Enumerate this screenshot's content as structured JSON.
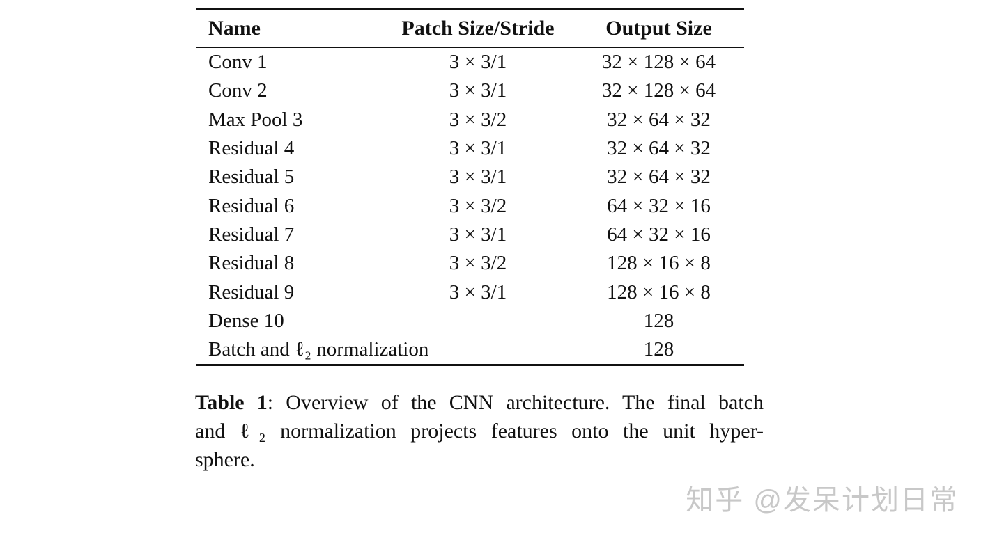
{
  "table": {
    "headers": [
      "Name",
      "Patch Size/Stride",
      "Output Size"
    ],
    "rows": [
      {
        "name": "Conv 1",
        "patch": "3 × 3/1",
        "output": "32 × 128 × 64"
      },
      {
        "name": "Conv 2",
        "patch": "3 × 3/1",
        "output": "32 × 128 × 64"
      },
      {
        "name": "Max Pool 3",
        "patch": "3 × 3/2",
        "output": "32 × 64 × 32"
      },
      {
        "name": "Residual 4",
        "patch": "3 × 3/1",
        "output": "32 × 64 × 32"
      },
      {
        "name": "Residual 5",
        "patch": "3 × 3/1",
        "output": "32 × 64 × 32"
      },
      {
        "name": "Residual 6",
        "patch": "3 × 3/2",
        "output": "64 × 32 × 16"
      },
      {
        "name": "Residual 7",
        "patch": "3 × 3/1",
        "output": "64 × 32 × 16"
      },
      {
        "name": "Residual 8",
        "patch": "3 × 3/2",
        "output": "128 × 16 × 8"
      },
      {
        "name": "Residual 9",
        "patch": "3 × 3/1",
        "output": "128 × 16 × 8"
      },
      {
        "name": "Dense 10",
        "patch": "",
        "output": "128"
      },
      {
        "name": "Batch and ℓ₂ normalization",
        "patch": "",
        "output": "128"
      }
    ]
  },
  "caption": {
    "label": "Table 1",
    "line1_rest": ": Overview of the CNN architecture. The final batch",
    "line2": "and ℓ₂ normalization projects features onto the unit hyper-",
    "line3": "sphere."
  },
  "watermark": {
    "text": "知乎 @发呆计划日常",
    "color": "#c8c8c8"
  },
  "colors": {
    "background": "#ffffff",
    "text": "#111111",
    "rule": "#111111"
  }
}
